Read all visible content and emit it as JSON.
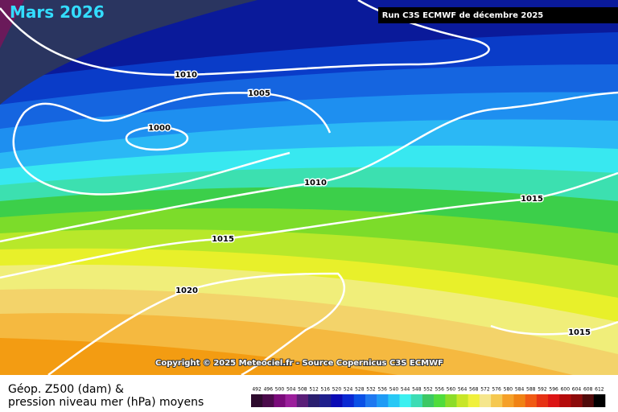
{
  "header": {
    "title": "Mars 2026",
    "run": "Run C3S ECMWF de décembre 2025"
  },
  "copyright": "Copyright © 2025 Meteociel.fr - Source Copernicus C3S ECMWF",
  "legend": {
    "title_lines": [
      "Géop. Z500 (dam) &",
      "pression niveau mer (hPa) moyens"
    ],
    "scale": [
      492,
      496,
      500,
      504,
      508,
      512,
      516,
      520,
      524,
      528,
      532,
      536,
      540,
      544,
      548,
      552,
      556,
      560,
      564,
      568,
      572,
      576,
      580,
      584,
      588,
      592,
      596,
      600,
      604,
      608,
      612
    ],
    "colors": [
      "#2d0a2d",
      "#4b0a4b",
      "#7a0a7a",
      "#9b1e9b",
      "#5a1e78",
      "#2a1e6e",
      "#1e1e8c",
      "#0a0ab4",
      "#0a28d2",
      "#0a50e6",
      "#1e78f0",
      "#1e9bf5",
      "#28c8f5",
      "#3cf0f0",
      "#3cdcb4",
      "#3cc864",
      "#50dc3c",
      "#8cdc28",
      "#c8e628",
      "#f0f03c",
      "#f5e68c",
      "#f5c850",
      "#f5a028",
      "#f08214",
      "#f05a14",
      "#e63214",
      "#dc1414",
      "#b40a0a",
      "#8c0a0a",
      "#500a0a",
      "#000000"
    ]
  },
  "isobars": [
    1010,
    1005,
    1000,
    1010,
    1015,
    1015,
    1020,
    1015
  ]
}
